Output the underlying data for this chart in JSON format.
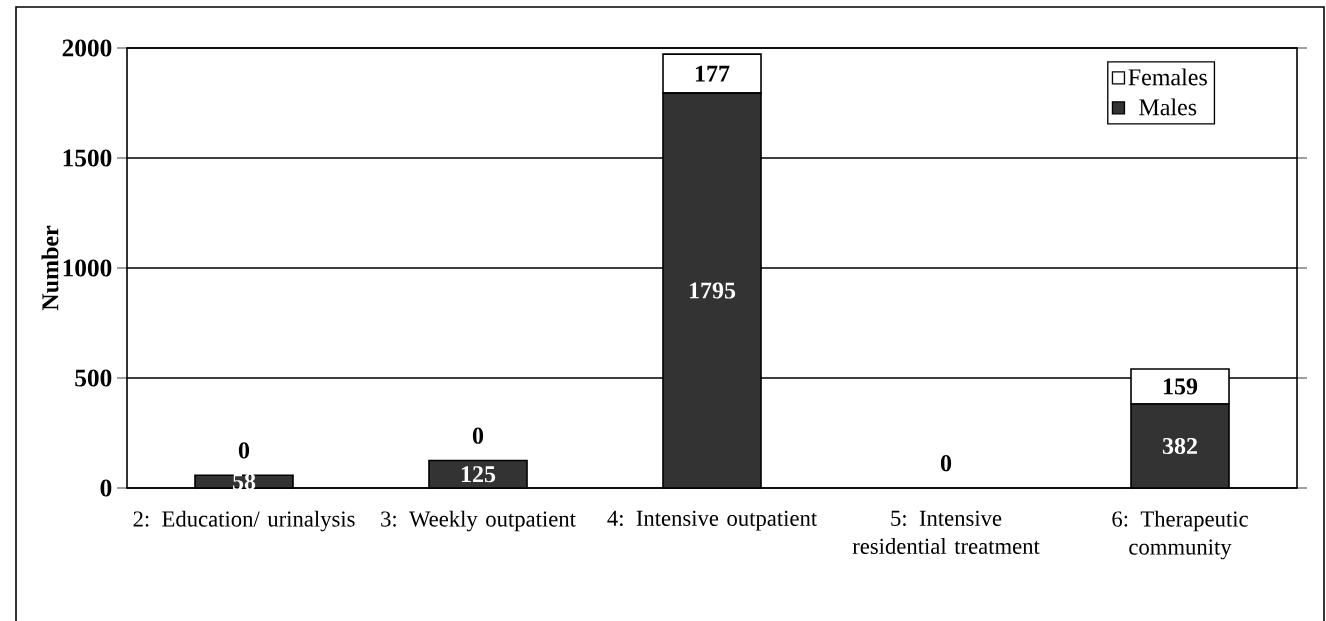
{
  "chart_data": {
    "type": "bar",
    "stacked": true,
    "ylabel": "Number",
    "categories": [
      "2: Education/ urinalysis",
      "3: Weekly outpatient",
      "4: Intensive outpatient",
      "5: Intensive residential treatment",
      "6: Therapeutic community"
    ],
    "series": [
      {
        "name": "Males",
        "color": "#333333",
        "values": [
          58,
          125,
          1795,
          0,
          382
        ],
        "value_labels": [
          "58",
          "125",
          "1795",
          null,
          "382"
        ]
      },
      {
        "name": "Females",
        "color": "#ffffff",
        "values": [
          0,
          0,
          177,
          0,
          159
        ],
        "value_labels": [
          "0",
          "0",
          "177",
          "0",
          "159"
        ]
      }
    ],
    "ylim": [
      0,
      2000
    ],
    "yticks": [
      0,
      500,
      1000,
      1500,
      2000
    ],
    "grid": "y",
    "legend": "top right"
  }
}
